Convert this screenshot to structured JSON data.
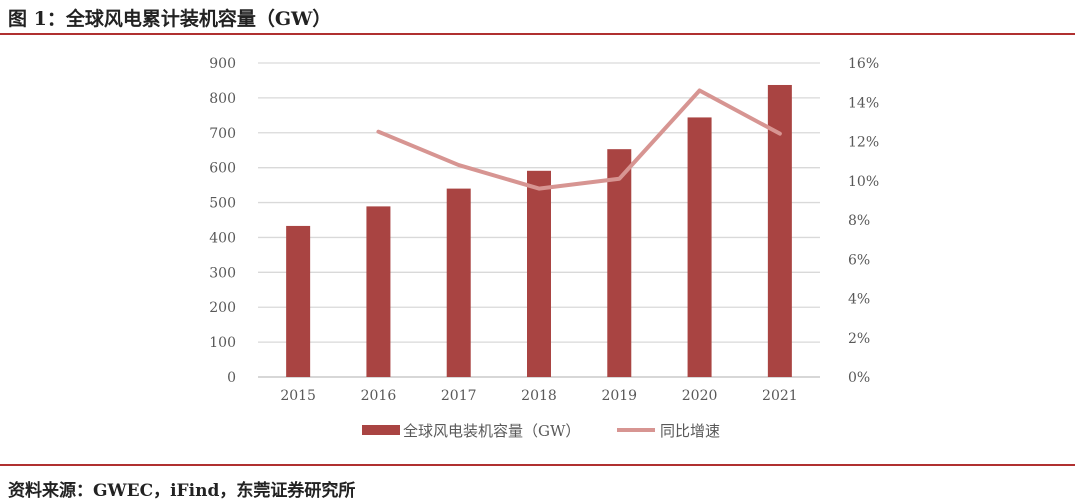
{
  "header": {
    "title": "图 1：全球风电累计装机容量（GW）"
  },
  "footer": {
    "source": "资料来源：GWEC，iFind，东莞证券研究所"
  },
  "chart_data": {
    "type": "bar+line",
    "categories": [
      "2015",
      "2016",
      "2017",
      "2018",
      "2019",
      "2020",
      "2021"
    ],
    "series": [
      {
        "name": "全球风电装机容量（GW）",
        "type": "bar",
        "axis": "left",
        "color": "#a94442",
        "values": [
          433,
          489,
          540,
          591,
          653,
          744,
          837
        ]
      },
      {
        "name": "同比增速",
        "type": "line",
        "axis": "right",
        "color": "#d79592",
        "values": [
          null,
          12.5,
          10.8,
          9.6,
          10.1,
          14.6,
          12.4
        ]
      }
    ],
    "left_axis": {
      "ylim": [
        0,
        900
      ],
      "ticks": [
        "0",
        "100",
        "200",
        "300",
        "400",
        "500",
        "600",
        "700",
        "800",
        "900"
      ]
    },
    "right_axis": {
      "ylim": [
        0,
        16
      ],
      "ticks": [
        "0%",
        "2%",
        "4%",
        "6%",
        "8%",
        "10%",
        "12%",
        "14%",
        "16%"
      ]
    },
    "grid": true,
    "legend_position": "bottom"
  }
}
